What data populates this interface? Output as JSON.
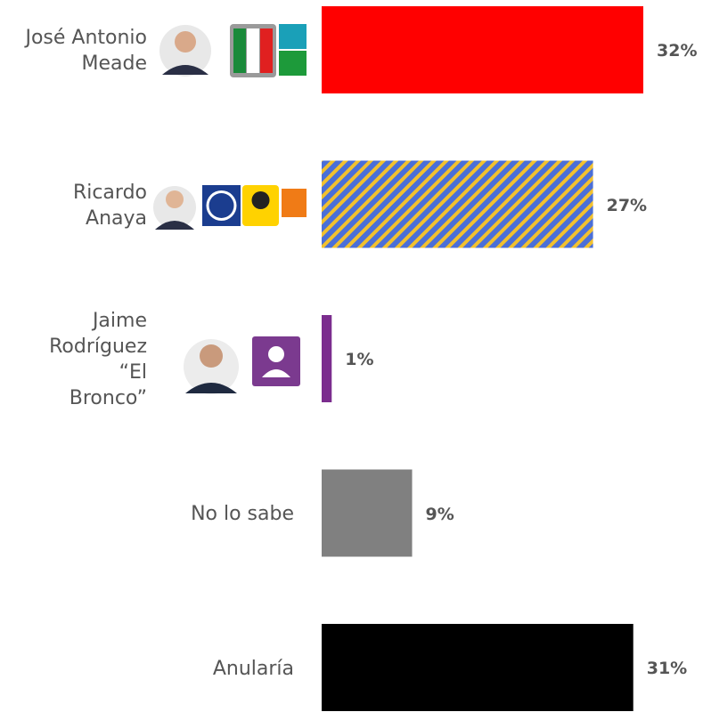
{
  "chart_data": {
    "type": "hbar",
    "categories": [
      "José Antonio Meade",
      "Ricardo Anaya",
      "Jaime Rodríguez “El Bronco”",
      "No lo sabe",
      "Anularía"
    ],
    "values": [
      32,
      27,
      1,
      9,
      31
    ],
    "value_labels": [
      "32%",
      "27%",
      "1%",
      "9%",
      "31%"
    ],
    "colors": [
      "#ff0000",
      "#4a6fd8",
      "#7b2d8e",
      "#808080",
      "#000000"
    ],
    "hatch": [
      false,
      true,
      false,
      false,
      false
    ],
    "hatch_color": "#f2c12e"
  }
}
